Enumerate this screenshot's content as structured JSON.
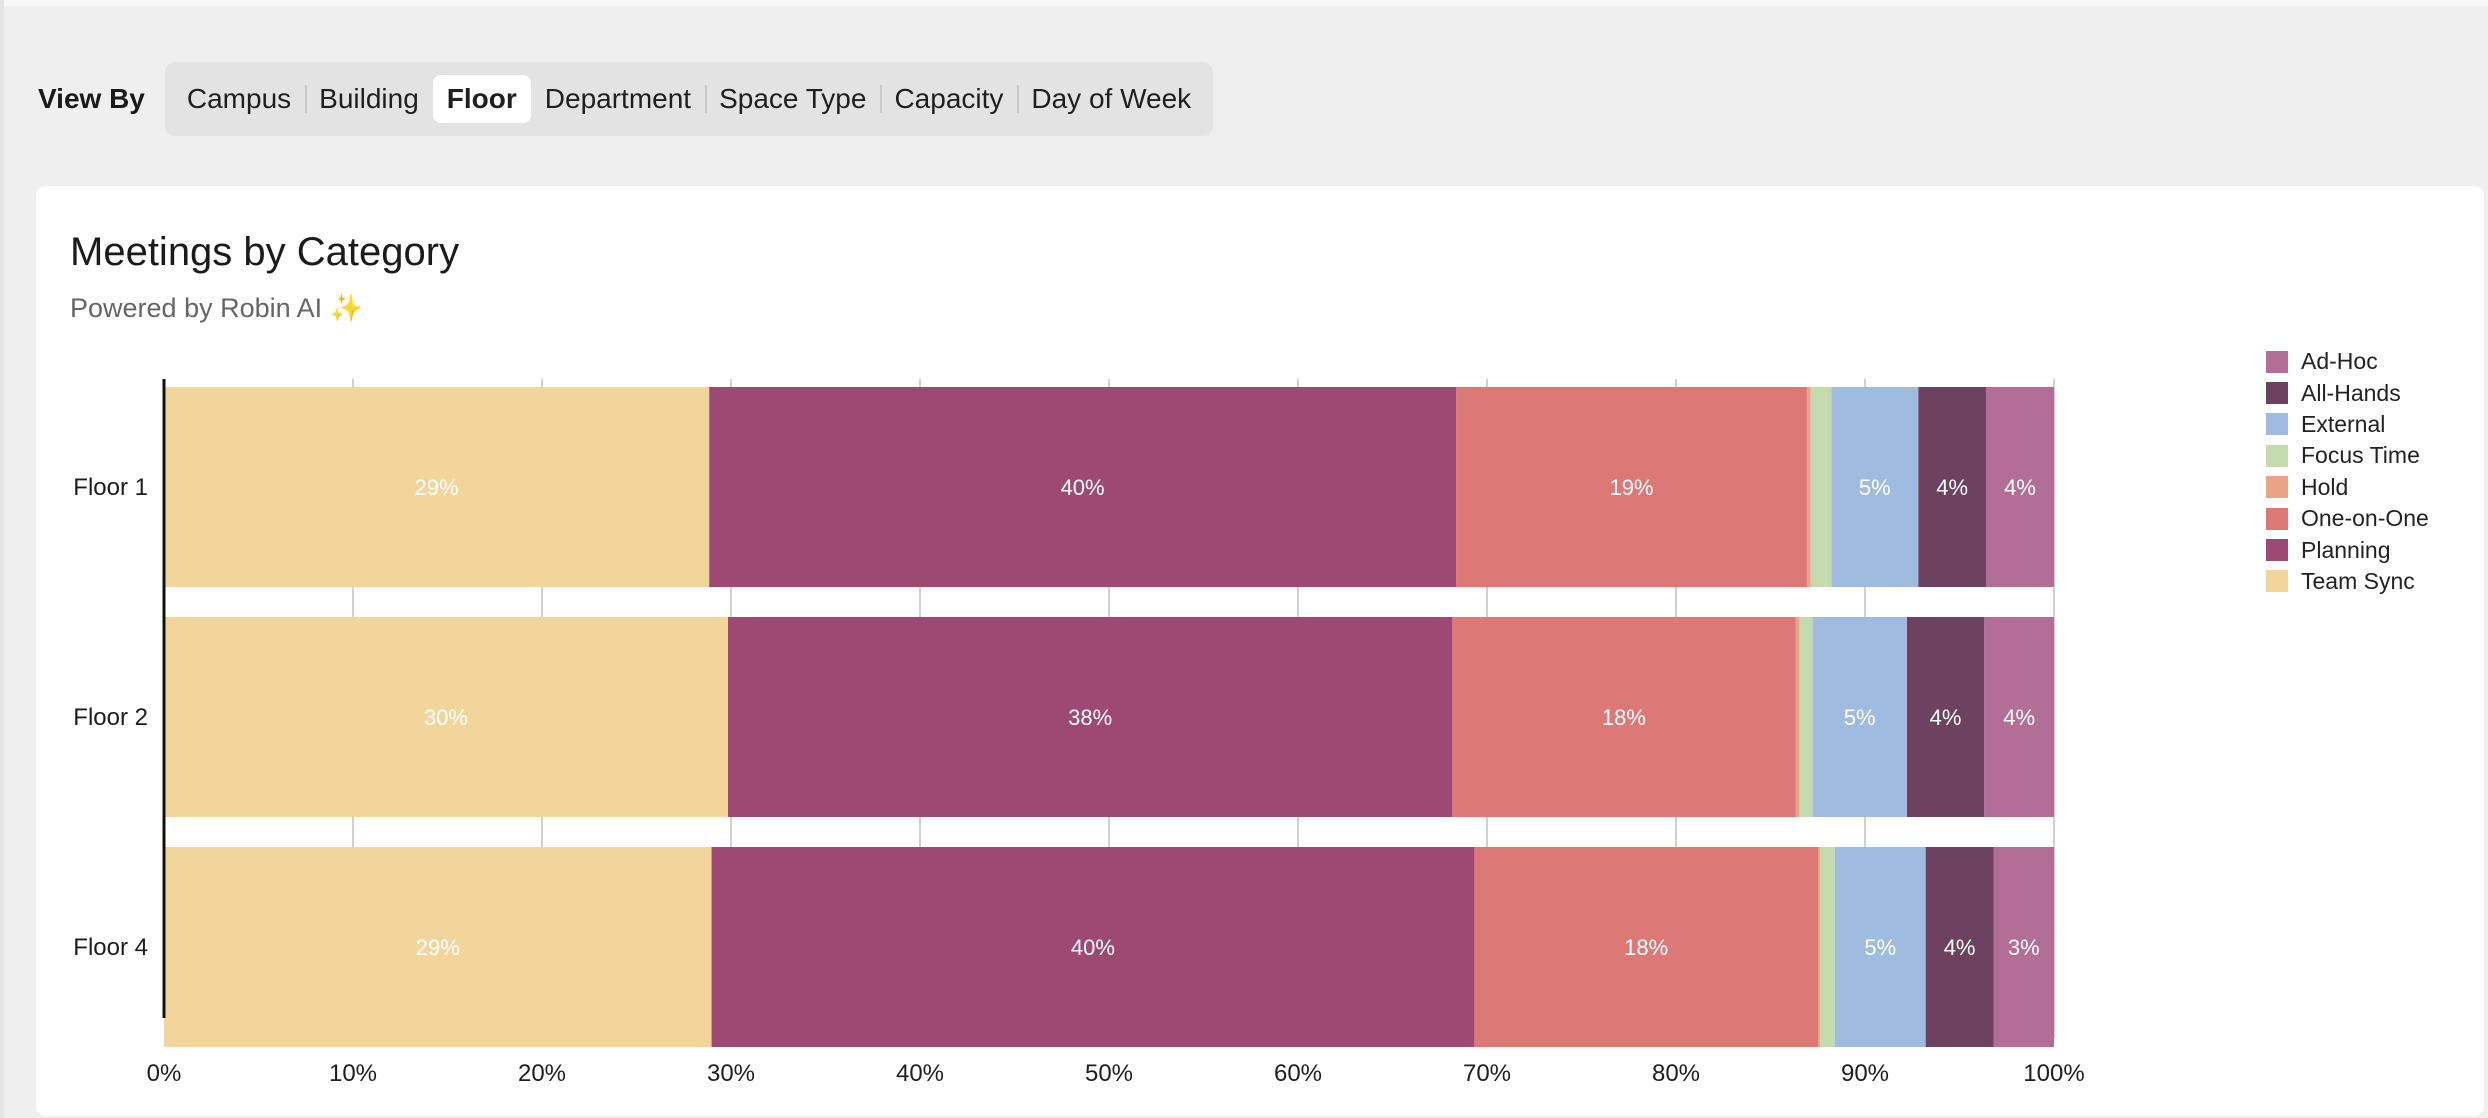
{
  "view_by": {
    "label": "View By",
    "options": [
      "Campus",
      "Building",
      "Floor",
      "Department",
      "Space Type",
      "Capacity",
      "Day of Week"
    ],
    "selected": "Floor"
  },
  "card": {
    "title": "Meetings by Category",
    "subtitle": "Powered by Robin AI",
    "subtitle_icon": "sparkles-icon"
  },
  "chart_data": {
    "type": "bar",
    "orientation": "horizontal",
    "stacked": true,
    "percent": true,
    "x_axis_reversed": true,
    "xlim": [
      0,
      100
    ],
    "x_ticks": [
      "100%",
      "90%",
      "80%",
      "70%",
      "60%",
      "50%",
      "40%",
      "30%",
      "20%",
      "10%",
      "0%"
    ],
    "grid": true,
    "legend_position": "right",
    "categories": [
      "Floor 1",
      "Floor 2",
      "Floor 4"
    ],
    "series": [
      {
        "name": "Ad-Hoc",
        "color": "#b26e97",
        "values": [
          3.6,
          3.7,
          3.2
        ],
        "labels": [
          "4%",
          "4%",
          "3%"
        ]
      },
      {
        "name": "All-Hands",
        "color": "#6d4260",
        "values": [
          3.6,
          4.1,
          3.6
        ],
        "labels": [
          "4%",
          "4%",
          "4%"
        ]
      },
      {
        "name": "External",
        "color": "#9fbbe0",
        "values": [
          4.6,
          5.0,
          4.8
        ],
        "labels": [
          "5%",
          "5%",
          "5%"
        ]
      },
      {
        "name": "Focus Time",
        "color": "#c4dbb0",
        "values": [
          1.1,
          0.7,
          0.8
        ],
        "labels": [
          "",
          "",
          ""
        ]
      },
      {
        "name": "Hold",
        "color": "#e9a387",
        "values": [
          0.2,
          0.2,
          0.1
        ],
        "labels": [
          "",
          "",
          ""
        ]
      },
      {
        "name": "One-on-One",
        "color": "#dc7876",
        "values": [
          18.6,
          18.2,
          18.2
        ],
        "labels": [
          "19%",
          "18%",
          "18%"
        ]
      },
      {
        "name": "Planning",
        "color": "#9e4874",
        "values": [
          39.6,
          38.4,
          40.4
        ],
        "labels": [
          "40%",
          "38%",
          "40%"
        ]
      },
      {
        "name": "Team Sync",
        "color": "#f2d59b",
        "values": [
          28.9,
          29.9,
          29.0
        ],
        "labels": [
          "29%",
          "30%",
          "29%"
        ]
      }
    ]
  }
}
